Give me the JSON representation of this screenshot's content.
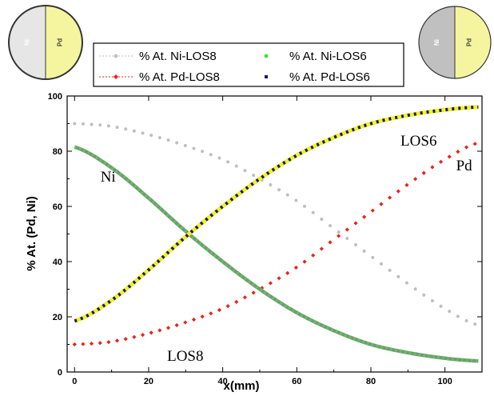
{
  "chart_data": {
    "type": "scatter",
    "xlabel": "x(mm)",
    "ylabel": "% At. (Pd, Ni)",
    "xlim": [
      -2,
      110
    ],
    "ylim": [
      0,
      100
    ],
    "xticks": [
      0,
      20,
      40,
      60,
      80,
      100
    ],
    "yticks": [
      0,
      20,
      40,
      60,
      80,
      100
    ],
    "legend_position": "top",
    "series": [
      {
        "name": "% At. Ni-LOS8",
        "color": "#bfbfbf",
        "marker": "circle",
        "line": "dotted",
        "x": [
          0,
          10,
          20,
          30,
          40,
          50,
          60,
          70,
          80,
          90,
          100,
          109
        ],
        "y": [
          90,
          89,
          86,
          82,
          77,
          70,
          62,
          52,
          42,
          32,
          23,
          17
        ]
      },
      {
        "name": "% At. Pd-LOS8",
        "color": "#e8251b",
        "marker": "diamond",
        "line": "dotted",
        "x": [
          0,
          10,
          20,
          30,
          40,
          50,
          60,
          70,
          80,
          90,
          100,
          109
        ],
        "y": [
          10,
          11,
          14,
          18,
          23,
          30,
          38,
          48,
          58,
          68,
          77,
          83
        ]
      },
      {
        "name": "% At. Ni-LOS6",
        "color": "#33e633",
        "marker": "circle",
        "line": "none",
        "x": [
          0,
          10,
          20,
          30,
          40,
          50,
          60,
          70,
          80,
          90,
          100,
          109
        ],
        "y": [
          81.5,
          74,
          63,
          51,
          40,
          30,
          21.5,
          15,
          10,
          7,
          5,
          4
        ]
      },
      {
        "name": "% At. Pd-LOS6",
        "color": "#1a1a66",
        "marker": "square",
        "line": "none",
        "x": [
          0,
          10,
          20,
          30,
          40,
          50,
          60,
          70,
          80,
          90,
          100,
          109
        ],
        "y": [
          18.5,
          26,
          37,
          49,
          60,
          70,
          78.5,
          85,
          90,
          93,
          95,
          96
        ]
      }
    ],
    "annotations": [
      {
        "text": "Ni",
        "x": 7,
        "y": 69
      },
      {
        "text": "LOS6",
        "x": 88,
        "y": 82
      },
      {
        "text": "Pd",
        "x": 103,
        "y": 73
      },
      {
        "text": "LOS8",
        "x": 25,
        "y": 4
      }
    ]
  },
  "insets": {
    "left_circle": {
      "left_label": "Ni",
      "right_label": "Pd",
      "left_color": "#e6e6e6",
      "right_color": "#f5f5a0"
    },
    "right_circle": {
      "left_label": "Ni",
      "right_label": "Pd",
      "left_color": "#c0c0c0",
      "right_color": "#f5f5a0"
    }
  }
}
